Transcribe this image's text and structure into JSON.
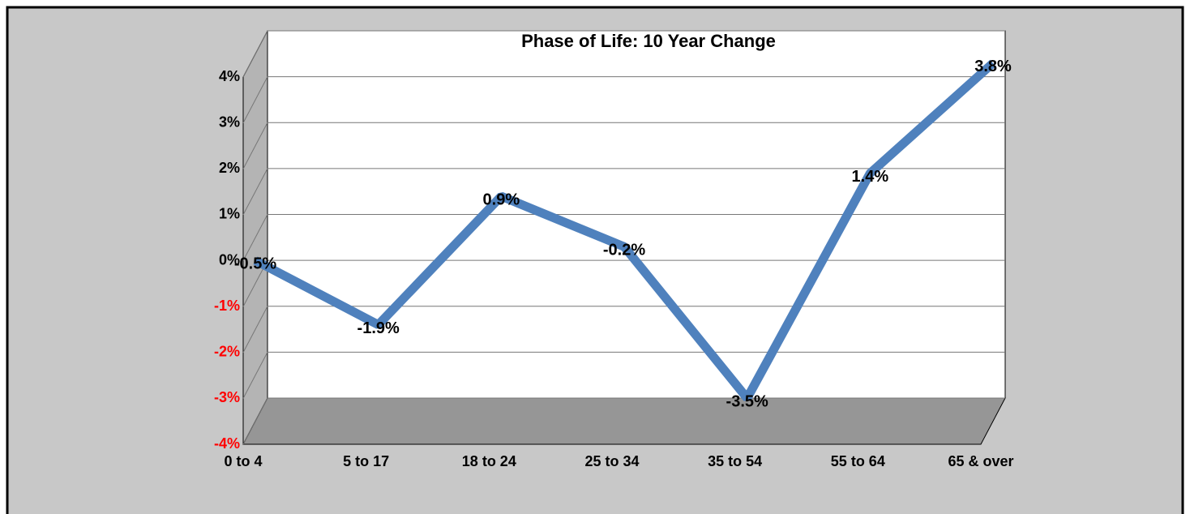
{
  "chart_data": {
    "type": "line",
    "title": "Phase of Life: 10 Year Change",
    "categories": [
      "0 to 4",
      "5 to 17",
      "18 to 24",
      "25 to 34",
      "35 to 54",
      "55 to 64",
      "65 & over"
    ],
    "series": [
      {
        "name": "10 Year Change",
        "color": "#4f81bd",
        "values": [
          -0.5,
          -1.9,
          0.9,
          -0.2,
          -3.5,
          1.4,
          3.8
        ],
        "value_labels": [
          "-0.5%",
          "-1.9%",
          "0.9%",
          "-0.2%",
          "-3.5%",
          "1.4%",
          "3.8%"
        ]
      }
    ],
    "ylim": [
      -4,
      4
    ],
    "yticks": [
      {
        "value": -4,
        "label": "-4%"
      },
      {
        "value": -3,
        "label": "-3%"
      },
      {
        "value": -2,
        "label": "-2%"
      },
      {
        "value": -1,
        "label": "-1%"
      },
      {
        "value": 0,
        "label": "0%"
      },
      {
        "value": 1,
        "label": "1%"
      },
      {
        "value": 2,
        "label": "2%"
      },
      {
        "value": 3,
        "label": "3%"
      },
      {
        "value": 4,
        "label": "4%"
      }
    ],
    "negative_tick_color": "#ff0000",
    "grid": true
  }
}
